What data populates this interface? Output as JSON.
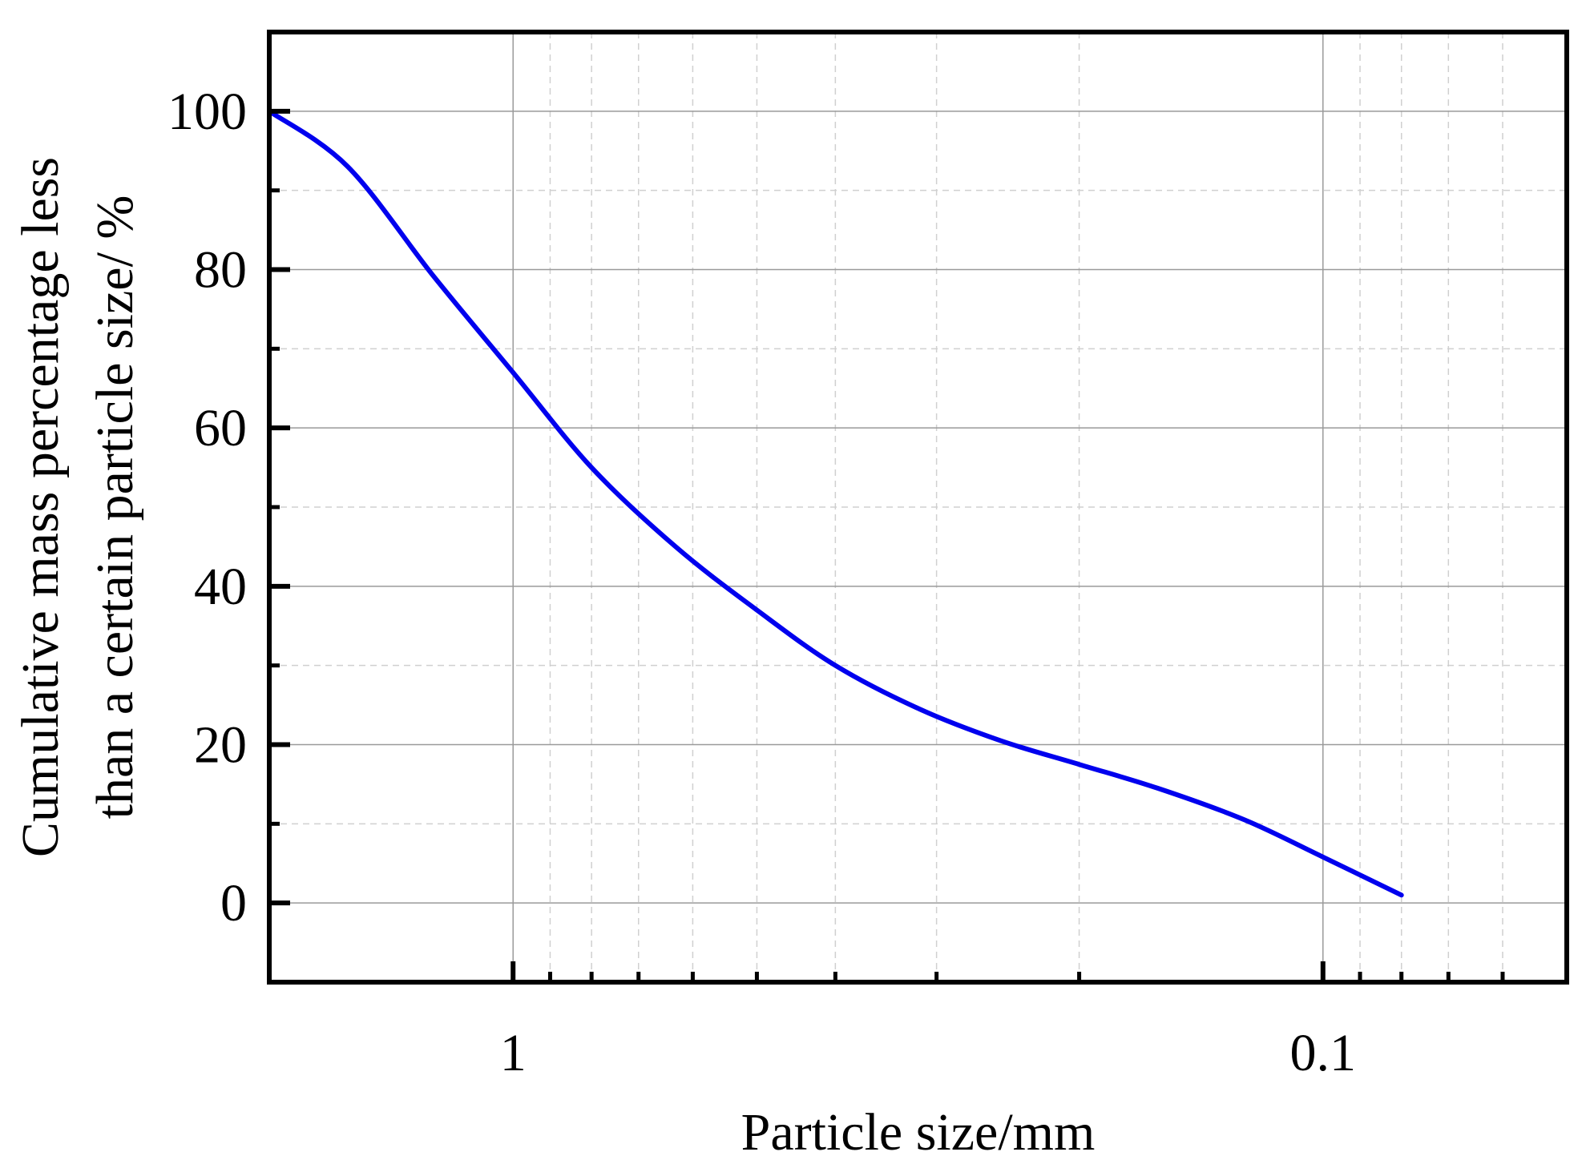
{
  "chart_data": {
    "type": "line",
    "x_scale": "log",
    "x_reversed": true,
    "xlabel": "Particle size/mm",
    "ylabel_lines": [
      "Cumulative mass percentage less",
      "than a certain particle size/ %"
    ],
    "xlim": [
      2.0,
      0.05
    ],
    "ylim": [
      -10,
      110
    ],
    "x_major_ticks": [
      {
        "value": 1,
        "label": "1"
      },
      {
        "value": 0.1,
        "label": "0.1"
      }
    ],
    "x_minor_ticks": [
      2,
      0.9,
      0.8,
      0.7,
      0.6,
      0.5,
      0.4,
      0.3,
      0.2,
      0.09,
      0.08,
      0.07,
      0.06
    ],
    "y_major_ticks": [
      {
        "value": 0,
        "label": "0"
      },
      {
        "value": 20,
        "label": "20"
      },
      {
        "value": 40,
        "label": "40"
      },
      {
        "value": 60,
        "label": "60"
      },
      {
        "value": 80,
        "label": "80"
      },
      {
        "value": 100,
        "label": "100"
      }
    ],
    "y_minor_ticks": [
      10,
      30,
      50,
      70,
      90
    ],
    "grid": true,
    "series": [
      {
        "color": "#0000ee",
        "x": [
          2.0,
          1.6,
          1.25,
          1.0,
          0.8,
          0.63,
          0.5,
          0.4,
          0.315,
          0.25,
          0.2,
          0.16,
          0.125,
          0.1,
          0.08
        ],
        "y": [
          100,
          93,
          79,
          67,
          55,
          45,
          37,
          30,
          24.5,
          20.5,
          17.5,
          14.5,
          10.5,
          5.8,
          1
        ]
      }
    ]
  }
}
